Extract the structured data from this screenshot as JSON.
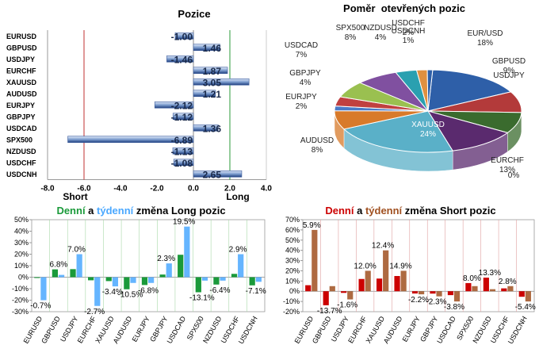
{
  "colors": {
    "bar_blue": "#7f9fd0",
    "bar_blue_dark": "#1f3f7f",
    "green": "#1a9a3a",
    "light_blue": "#4aa8ff",
    "red": "#cc0000",
    "brown": "#a05020",
    "pie_colors": [
      "#2e5fa8",
      "#b33a3a",
      "#3a6b2e",
      "#5a2a6e",
      "#5ab0c8",
      "#d87a2a",
      "#4a7ac8",
      "#c04040",
      "#9ac050",
      "#8050a0",
      "#2aa0b0",
      "#e09040"
    ]
  },
  "chart_data": [
    {
      "type": "bar",
      "orientation": "horizontal",
      "title": "Pozice",
      "categories": [
        "EURUSD",
        "GBPUSD",
        "USDJPY",
        "EURCHF",
        "XAUUSD",
        "AUDUSD",
        "EURJPY",
        "GBPJPY",
        "USDCAD",
        "SPX500",
        "NZDUSD",
        "USDCHF",
        "USDCNH"
      ],
      "values": [
        -1.0,
        1.46,
        -1.46,
        1.87,
        3.05,
        1.21,
        -2.12,
        -1.12,
        1.36,
        -6.89,
        -1.13,
        -1.08,
        2.65
      ],
      "value_labels": [
        "-1.00",
        "1.46",
        "-1.46",
        "1.87",
        "3.05",
        "1.21",
        "-2.12",
        "-1.12",
        "1.36",
        "-6.89",
        "-1.13",
        "-1.08",
        "2.65"
      ],
      "xlim": [
        -8.0,
        4.0
      ],
      "xticks": [
        "-8.0",
        "-6.0",
        "-4.0",
        "-2.0",
        "0.0",
        "2.0",
        "4.0"
      ],
      "annotations": {
        "short": "Short",
        "long": "Long"
      },
      "reference_lines": [
        -6.0,
        2.0
      ]
    },
    {
      "type": "pie",
      "title": "Poměr  otevřených pozic",
      "slices": [
        {
          "label": "EUR/USD",
          "pct_label": "18%",
          "value": 18
        },
        {
          "label": "GBPUSD",
          "pct_label": "9%",
          "value": 9
        },
        {
          "label": "USDJPY",
          "pct_label": "",
          "value": 9
        },
        {
          "label": "EURCHF",
          "pct_label": "13%",
          "value": 13
        },
        {
          "label": "XAUUSD",
          "pct_label": "24%",
          "value": 24
        },
        {
          "label": "AUDUSD",
          "pct_label": "8%",
          "value": 8
        },
        {
          "label": "EURJPY",
          "pct_label": "2%",
          "value": 2
        },
        {
          "label": "GBPJPY",
          "pct_label": "4%",
          "value": 4
        },
        {
          "label": "USDCAD",
          "pct_label": "7%",
          "value": 7
        },
        {
          "label": "SPX500",
          "pct_label": "8%",
          "value": 8
        },
        {
          "label": "NZDUSD",
          "pct_label": "4%",
          "value": 4
        },
        {
          "label": "USDCHF",
          "pct_label": "2%",
          "value": 2
        },
        {
          "label": "USDCNH",
          "pct_label": "1%",
          "value": 1
        }
      ],
      "extra_label": "0%"
    },
    {
      "type": "bar",
      "title_parts": [
        "Denní",
        " a ",
        "týdenní",
        " změna Long pozic"
      ],
      "categories": [
        "EURUSD",
        "GBPUSD",
        "USDJPY",
        "EURCHF",
        "XAUUSD",
        "AUDUSD",
        "EURJPY",
        "GBPJPY",
        "USDCAD",
        "SPX500",
        "NZDUSD",
        "USDCHF",
        "USDCNH"
      ],
      "series": [
        {
          "name": "Denní",
          "values": [
            -0.7,
            6.8,
            7.0,
            -2.7,
            -3.4,
            -10.5,
            -6.8,
            2.3,
            19.5,
            -13.1,
            -6.4,
            2.9,
            -7.1
          ]
        },
        {
          "name": "týdenní",
          "values": [
            -20.0,
            2.0,
            20.0,
            -25.0,
            -8.0,
            -5.0,
            -5.0,
            12.0,
            44.0,
            -3.0,
            -3.0,
            20.0,
            -4.0
          ]
        }
      ],
      "data_labels": [
        "-0.7%",
        "6.8%",
        "7.0%",
        "-2.7%",
        "-3.4%",
        "-10.5%",
        "-6.8%",
        "2.3%",
        "19.5%",
        "-13.1%",
        "-6.4%",
        "2.9%",
        "-7.1%"
      ],
      "ylim": [
        -30,
        50
      ],
      "yticks": [
        "50%",
        "40%",
        "30%",
        "20%",
        "10%",
        "0%",
        "-10%",
        "-20%",
        "-30%"
      ]
    },
    {
      "type": "bar",
      "title_parts": [
        "Denní",
        " a ",
        "týdenní",
        " změna Short pozic"
      ],
      "categories": [
        "EURUSD",
        "GBPUSD",
        "USDJPY",
        "EURCHF",
        "XAUUSD",
        "AUDUSD",
        "EURJPY",
        "GBPJPY",
        "USDCAD",
        "SPX500",
        "NZDUSD",
        "USDCHF",
        "USDCNH"
      ],
      "series": [
        {
          "name": "Denní",
          "values": [
            5.9,
            -13.7,
            -1.6,
            12.0,
            12.4,
            14.9,
            -2.2,
            -2.3,
            -3.8,
            8.0,
            13.3,
            2.8,
            -5.4
          ]
        },
        {
          "name": "týdenní",
          "values": [
            60.0,
            5.0,
            -8.0,
            20.0,
            40.0,
            20.0,
            -3.0,
            -5.0,
            -10.0,
            5.0,
            2.0,
            5.0,
            -10.0
          ]
        }
      ],
      "data_labels": [
        "5.9%",
        "-13.7%",
        "-1.6%",
        "12.0%",
        "12.4%",
        "14.9%",
        "-2.2%",
        "-2.3%",
        "-3.8%",
        "8.0%",
        "13.3%",
        "2.8%",
        "-5.4%"
      ],
      "ylim": [
        -20,
        70
      ],
      "yticks": [
        "70%",
        "60%",
        "50%",
        "40%",
        "30%",
        "20%",
        "10%",
        "0%",
        "-10%",
        "-20%"
      ]
    }
  ]
}
